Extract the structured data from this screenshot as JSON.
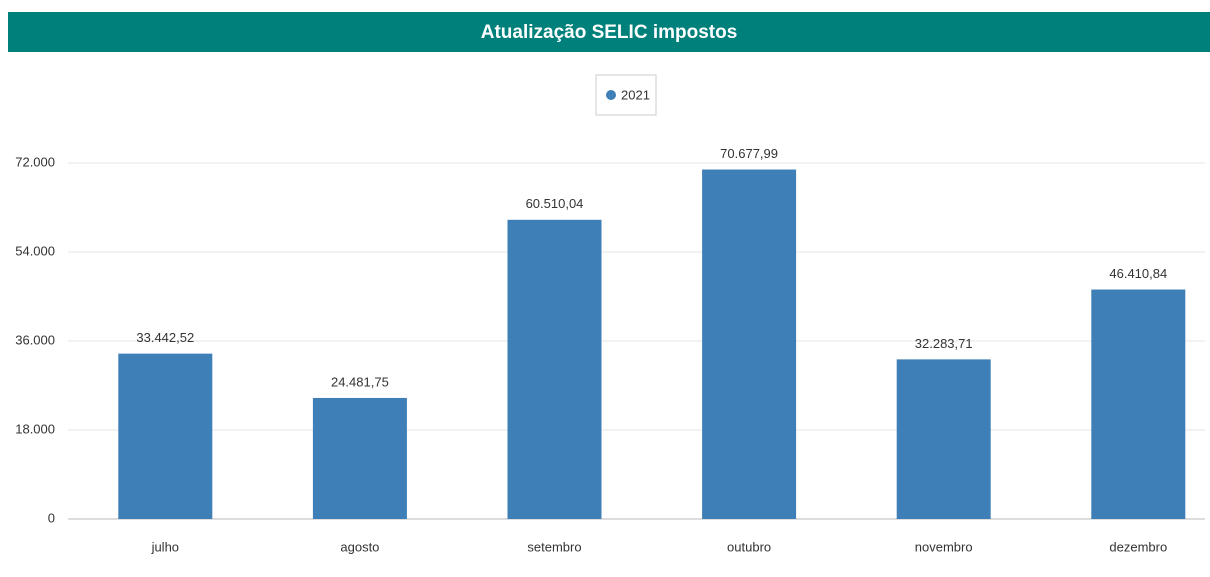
{
  "chart_data": {
    "type": "bar",
    "title": "Atualização SELIC impostos",
    "categories": [
      "julho",
      "agosto",
      "setembro",
      "outubro",
      "novembro",
      "dezembro"
    ],
    "series": [
      {
        "name": "2021",
        "color": "#3d7fb6",
        "values": [
          33442.52,
          24481.75,
          60510.04,
          70677.99,
          32283.71,
          46410.84
        ],
        "value_labels": [
          "33.442,52",
          "24.481,75",
          "60.510,04",
          "70.677,99",
          "32.283,71",
          "46.410,84"
        ]
      }
    ],
    "ylim": [
      0,
      72000
    ],
    "yticks": [
      0,
      {
        "value": 18000,
        "label": "18.000"
      },
      {
        "value": 36000,
        "label": "36.000"
      },
      {
        "value": 54000,
        "label": "54.000"
      },
      {
        "value": 72000,
        "label": "72.000"
      }
    ],
    "grid": true,
    "legend": "top"
  }
}
